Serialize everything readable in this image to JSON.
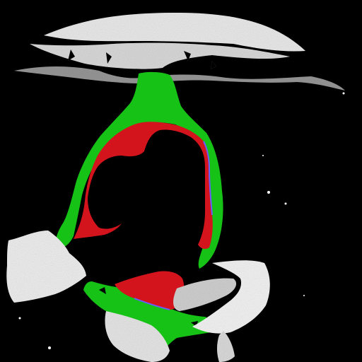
{
  "image": {
    "kind": "axial CT slice with color segmentation overlay",
    "background_color": "#000000",
    "segments": [
      {
        "name": "bone-and-dense-tissue",
        "color": "#e6e6e6"
      },
      {
        "name": "pericardial-green-region",
        "color": "#16c216"
      },
      {
        "name": "cardiac-red-region",
        "color": "#d4141c"
      },
      {
        "name": "edge-highlight",
        "color": "#6a5cff"
      }
    ]
  }
}
